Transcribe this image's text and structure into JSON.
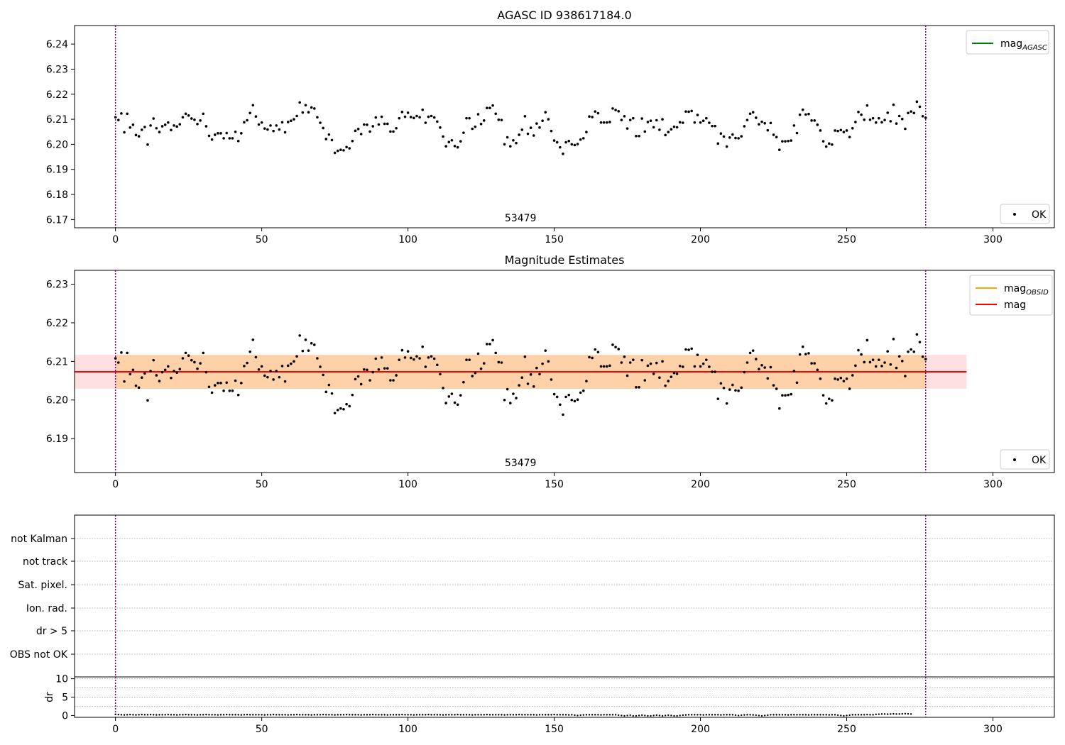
{
  "chart_data": [
    {
      "type": "scatter",
      "title": "AGASC ID 938617184.0",
      "xlabel": "",
      "ylabel": "",
      "xlim": [
        -14,
        321
      ],
      "ylim": [
        6.1667,
        6.2474
      ],
      "xticks": [
        0,
        50,
        100,
        150,
        200,
        250,
        300
      ],
      "yticks": [
        6.17,
        6.18,
        6.19,
        6.2,
        6.21,
        6.22,
        6.23,
        6.24
      ],
      "ytick_labels": [
        "6.17",
        "6.18",
        "6.19",
        "6.20",
        "6.21",
        "6.22",
        "6.23",
        "6.24"
      ],
      "vlines": [
        0,
        277
      ],
      "vline_color": "#800080",
      "annotation": {
        "text": "53479",
        "x": 138.5
      },
      "legend_lines": [
        {
          "label": "mag",
          "subscript": "AGASC",
          "color": "#008000"
        }
      ],
      "legend_points": [
        {
          "label": "OK",
          "color": "#000000"
        }
      ],
      "series": [
        {
          "name": "OK",
          "color": "#000000",
          "y": [
            6.2108,
            6.2097,
            6.2123,
            6.2048,
            6.2122,
            6.2067,
            6.2078,
            6.2037,
            6.2032,
            6.2058,
            6.2069,
            6.1999,
            6.2075,
            6.2103,
            6.2064,
            6.2049,
            6.2072,
            6.2078,
            6.2087,
            6.2057,
            6.2075,
            6.2071,
            6.208,
            6.2108,
            6.2122,
            6.2115,
            6.2103,
            6.2098,
            6.2081,
            6.2095,
            6.2122,
            6.2072,
            6.2034,
            6.2019,
            6.2038,
            6.2044,
            6.2044,
            6.2024,
            6.2045,
            6.2024,
            6.2024,
            6.205,
            6.2013,
            6.2044,
            6.2088,
            6.2096,
            6.2125,
            6.2156,
            6.2111,
            6.2079,
            6.2087,
            6.2063,
            6.2059,
            6.2075,
            6.2053,
            6.2075,
            6.2059,
            6.2088,
            6.2048,
            6.2089,
            6.2094,
            6.21,
            6.2113,
            6.2167,
            6.2127,
            6.2156,
            6.2128,
            6.2147,
            6.2143,
            6.2108,
            6.2086,
            6.2065,
            6.2021,
            6.2039,
            6.2017,
            6.1966,
            6.1974,
            6.1978,
            6.1976,
            6.1989,
            6.1984,
            6.2013,
            6.2054,
            6.2061,
            6.2041,
            6.2079,
            6.2078,
            6.2051,
            6.2072,
            6.2107,
            6.2079,
            6.211,
            6.2082,
            6.2082,
            6.2051,
            6.2051,
            6.2064,
            6.2104,
            6.2129,
            6.211,
            6.2126,
            6.2109,
            6.2105,
            6.2113,
            6.2108,
            6.2138,
            6.2086,
            6.211,
            6.2113,
            6.2107,
            6.2091,
            6.2067,
            6.2031,
            6.1992,
            6.2009,
            6.2016,
            6.1993,
            6.1988,
            6.2012,
            6.2046,
            6.2104,
            6.2104,
            6.2062,
            6.207,
            6.212,
            6.2081,
            6.2095,
            6.2145,
            6.2145,
            6.2155,
            6.2122,
            6.2098,
            6.2097,
            6.2,
            6.2028,
            6.1992,
            6.2016,
            6.2005,
            6.2038,
            6.2058,
            6.2112,
            6.2042,
            6.2066,
            6.2035,
            6.2083,
            6.2067,
            6.2094,
            6.2128,
            6.21,
            6.2053,
            6.2015,
            6.2008,
            6.1988,
            6.1962,
            6.2008,
            6.2013,
            6.2,
            6.1997,
            6.2001,
            6.2019,
            6.2024,
            6.2049,
            6.2111,
            6.2109,
            6.2131,
            6.2124,
            6.2087,
            6.2087,
            6.2087,
            6.2089,
            6.2143,
            6.2137,
            6.2132,
            6.2097,
            6.2112,
            6.2063,
            6.2097,
            6.2104,
            6.2033,
            6.2033,
            6.2103,
            6.2051,
            6.2089,
            6.2094,
            6.2068,
            6.2096,
            6.2058,
            6.21,
            6.2037,
            6.2049,
            6.206,
            6.207,
            6.2068,
            6.2088,
            6.2086,
            6.2131,
            6.213,
            6.2133,
            6.2087,
            6.2117,
            6.2087,
            6.2094,
            6.2104,
            6.2086,
            6.2073,
            6.2073,
            6.2003,
            6.2043,
            6.2031,
            6.1991,
            6.2027,
            6.2039,
            6.2025,
            6.2024,
            6.2032,
            6.2072,
            6.2097,
            6.2122,
            6.2128,
            6.2106,
            6.208,
            6.209,
            6.2084,
            6.2056,
            6.2085,
            6.2038,
            6.2029,
            6.1978,
            6.2012,
            6.2012,
            6.2013,
            6.2015,
            6.2075,
            6.2045,
            6.2118,
            6.2138,
            6.2119,
            6.2121,
            6.2095,
            6.2095,
            6.2078,
            6.2055,
            6.2012,
            6.1991,
            6.2003,
            6.1999,
            6.2055,
            6.2053,
            6.2057,
            6.2049,
            6.2055,
            6.2029,
            6.2064,
            6.2089,
            6.2129,
            6.2118,
            6.2098,
            6.2155,
            6.2098,
            6.2104,
            6.2087,
            6.2104,
            6.2088,
            6.2097,
            6.2126,
            6.2092,
            6.2158,
            6.2083,
            6.2113,
            6.2101,
            6.2062,
            6.2125,
            6.2131,
            6.2125,
            6.217,
            6.215,
            6.2112,
            6.2106
          ]
        }
      ]
    },
    {
      "type": "scatter",
      "title": "Magnitude Estimates",
      "xlabel": "",
      "ylabel": "",
      "xlim": [
        -14,
        321
      ],
      "ylim": [
        6.1812,
        6.2336
      ],
      "xticks": [
        0,
        50,
        100,
        150,
        200,
        250,
        300
      ],
      "yticks": [
        6.19,
        6.2,
        6.21,
        6.22,
        6.23
      ],
      "ytick_labels": [
        "6.19",
        "6.20",
        "6.21",
        "6.22",
        "6.23"
      ],
      "vlines": [
        0,
        277
      ],
      "vline_color": "#800080",
      "annotation": {
        "text": "53479",
        "x": 138.5
      },
      "mag_OBSID": {
        "value": 6.2073,
        "x": [
          0,
          277
        ],
        "band": [
          6.2029,
          6.2117
        ],
        "color": "#ffa500"
      },
      "mag": {
        "value": 6.2073,
        "x": [
          -14,
          291
        ],
        "band": [
          6.2029,
          6.2117
        ],
        "color": "#ff0000"
      },
      "legend_lines": [
        {
          "label": "mag",
          "subscript": "OBSID",
          "color": "#ffa500"
        },
        {
          "label": "mag",
          "subscript": "",
          "color": "#ff0000"
        }
      ],
      "legend_points": [
        {
          "label": "OK",
          "color": "#000000"
        }
      ],
      "series_ref": "same OK points as panel 1"
    },
    {
      "type": "scatter",
      "title": "",
      "xlim": [
        -14,
        321
      ],
      "xticks": [
        0,
        50,
        100,
        150,
        200,
        250,
        300
      ],
      "flag_labels": [
        "not Kalman",
        "not track",
        "Sat. pixel.",
        "Ion. rad.",
        "dr > 5",
        "OBS not OK"
      ],
      "vlines": [
        0,
        277
      ],
      "vline_color": "#800080"
    },
    {
      "type": "scatter",
      "title": "",
      "xlabel": "",
      "ylabel": "dr",
      "xlim": [
        -14,
        321
      ],
      "ylim": [
        -0.5,
        10.5
      ],
      "xticks": [
        0,
        50,
        100,
        150,
        200,
        250,
        300
      ],
      "yticks": [
        0,
        5,
        10
      ],
      "ytick_labels": [
        "0",
        "5",
        "10"
      ],
      "vlines": [
        0,
        277
      ],
      "vline_color": "#800080",
      "dr_values": [
        0.3,
        0.25,
        0.2,
        0.15,
        0.2,
        0.25,
        0.2,
        0.15,
        0.2,
        0.25,
        0.2,
        0.2,
        0.25,
        0.2,
        0.15,
        0.2,
        0.2,
        0.2,
        0.25,
        0.2,
        0.2,
        0.15,
        0.2,
        0.2,
        0.25,
        0.2,
        0.2,
        0.2,
        0.15,
        0.2,
        0.2,
        0.25,
        0.2,
        0.2,
        0.2,
        0.15,
        0.2,
        0.2,
        0.25,
        0.2,
        0.2,
        0.2,
        0.2,
        0.15,
        0.2,
        0.25,
        0.2,
        0.2,
        0.2,
        0.2,
        0.2,
        0.15,
        0.2,
        0.2,
        0.25,
        0.2,
        0.2,
        0.2,
        0.2,
        0.15,
        0.2,
        0.2,
        0.25,
        0.2,
        0.2,
        0.2,
        0.2,
        0.15,
        0.2,
        0.2,
        0.2,
        0.25,
        0.2,
        0.2,
        0.2,
        0.15,
        0.2,
        0.2,
        0.2,
        0.25,
        0.2,
        0.2,
        0.2,
        0.2,
        0.15,
        0.2,
        0.2,
        0.2,
        0.25,
        0.2,
        0.2,
        0.2,
        0.2,
        0.15,
        0.2,
        0.2,
        0.2,
        0.2,
        0.25,
        0.2,
        0.2,
        0.2,
        0.15,
        0.2,
        0.2,
        0.2,
        0.2,
        0.25,
        0.2,
        0.2,
        0.2,
        0.2,
        0.15,
        0.2,
        0.2,
        0.2,
        0.2,
        0.25,
        0.2,
        0.2,
        0.2,
        0.2,
        0.15,
        0.2,
        0.2,
        0.2,
        0.2,
        0.25,
        0.2,
        0.2,
        0.2,
        0.2,
        0.2,
        0.15,
        0.2,
        0.2,
        0.2,
        0.2,
        0.25,
        0.2,
        0.2,
        0.2,
        0.2,
        0.2,
        0.15,
        0.2,
        0.2,
        0.2,
        0.2,
        0.2,
        0.25,
        0.2,
        0.2,
        0.2,
        0.2,
        0.15,
        0.2,
        0.1,
        0.0,
        0.1,
        0.15,
        0.2,
        0.2,
        0.2,
        0.2,
        0.2,
        0.15,
        0.2,
        0.2,
        0.2,
        0.2,
        0.2,
        0.1,
        0.0,
        -0.1,
        0.0,
        0.1,
        -0.1,
        -0.1,
        0.0,
        0.1,
        0.0,
        -0.1,
        -0.1,
        0.0,
        0.1,
        0.0,
        -0.1,
        0.0,
        0.1,
        0.0,
        -0.1,
        -0.1,
        0.0,
        0.1,
        0.15,
        0.2,
        0.2,
        0.2,
        0.2,
        0.2,
        0.15,
        0.2,
        0.2,
        0.2,
        0.2,
        0.2,
        0.15,
        0.2,
        0.2,
        0.2,
        0.2,
        0.1,
        0.0,
        0.1,
        0.15,
        0.2,
        0.2,
        0.15,
        0.1,
        0.0,
        -0.1,
        0.0,
        0.1,
        0.2,
        0.2,
        0.2,
        0.2,
        0.2,
        0.2,
        0.15,
        0.2,
        0.2,
        0.2,
        0.2,
        0.2,
        0.2,
        0.15,
        0.2,
        0.2,
        0.2,
        0.2,
        0.2,
        0.2,
        0.15,
        0.2,
        0.2,
        0.1,
        0.0,
        -0.1,
        0.0,
        0.1,
        0.2,
        0.2,
        0.2,
        0.2,
        0.2,
        0.25,
        0.2,
        0.2,
        0.3,
        0.35,
        0.4,
        0.4,
        0.35,
        0.4,
        0.45,
        0.4,
        0.4,
        0.45,
        0.5,
        0.45,
        0.4
      ]
    }
  ]
}
